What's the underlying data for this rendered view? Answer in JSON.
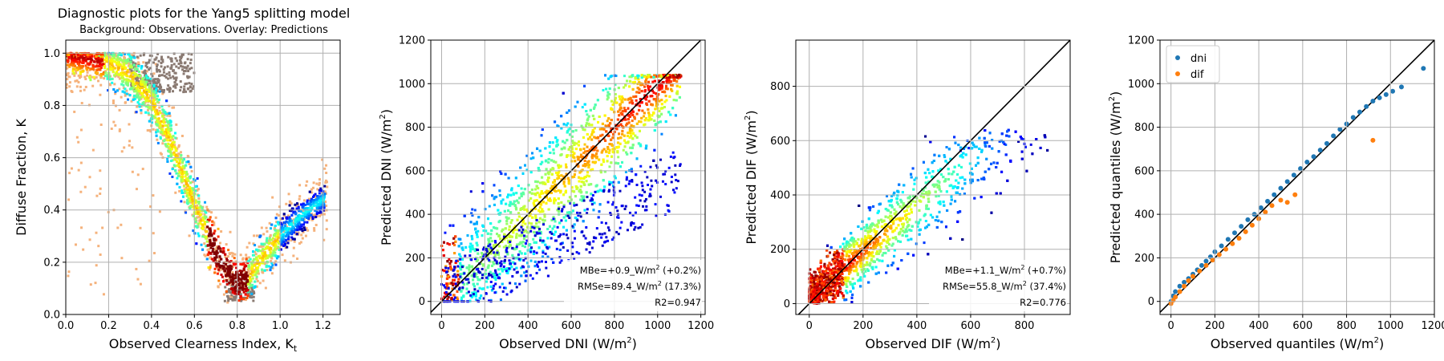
{
  "figure": {
    "title": "Diagnostic plots for the Yang5 splitting model",
    "subtitle": "Background: Observations. Overlay: Predictions"
  },
  "chart_data": [
    {
      "type": "scatter",
      "subtype": "density scatter",
      "xlabel": "Observed Clearness Index, K",
      "xlabel_subscript": "t",
      "ylabel": "Diffuse Fraction, K",
      "xlim": [
        0.0,
        1.28
      ],
      "ylim": [
        0.0,
        1.05
      ],
      "xticks": [
        "0.0",
        "0.2",
        "0.4",
        "0.6",
        "0.8",
        "1.0",
        "1.2"
      ],
      "yticks": [
        "0.0",
        "0.2",
        "0.4",
        "0.6",
        "0.8",
        "1.0"
      ],
      "grid": true,
      "background_color": "#f5b27c",
      "density_colormap": "jet",
      "predicted_color": "#8a7a72",
      "observed_curve_points": [
        [
          0.0,
          0.99
        ],
        [
          0.1,
          0.98
        ],
        [
          0.2,
          0.96
        ],
        [
          0.3,
          0.92
        ],
        [
          0.4,
          0.82
        ],
        [
          0.5,
          0.64
        ],
        [
          0.6,
          0.42
        ],
        [
          0.7,
          0.24
        ],
        [
          0.75,
          0.17
        ],
        [
          0.8,
          0.12
        ],
        [
          0.85,
          0.14
        ],
        [
          0.9,
          0.2
        ],
        [
          1.0,
          0.3
        ],
        [
          1.1,
          0.38
        ],
        [
          1.2,
          0.44
        ]
      ]
    },
    {
      "type": "scatter",
      "subtype": "density scatter",
      "xlabel": "Observed DNI (W/m",
      "ylabel": "Predicted DNI (W/m",
      "xlim": [
        -50,
        1220
      ],
      "ylim": [
        -60,
        1200
      ],
      "xticks": [
        0,
        200,
        400,
        600,
        800,
        1000,
        1200
      ],
      "yticks": [
        0,
        200,
        400,
        600,
        800,
        1000,
        1200
      ],
      "grid": true,
      "density_colormap": "jet",
      "reference_line": "y = x",
      "stats": {
        "mbe": "MBe=+0.9_W/m",
        "mbe_tail": " (+0.2%)",
        "rmse": "RMSe=89.4_W/m",
        "rmse_tail": " (17.3%)",
        "r2": "R2=0.947"
      }
    },
    {
      "type": "scatter",
      "subtype": "density scatter",
      "xlabel": "Observed DIF (W/m",
      "ylabel": "Predicted DIF (W/m",
      "xlim": [
        -50,
        970
      ],
      "ylim": [
        -40,
        970
      ],
      "xticks": [
        0,
        200,
        400,
        600,
        800
      ],
      "yticks": [
        0,
        200,
        400,
        600,
        800
      ],
      "grid": true,
      "density_colormap": "jet",
      "reference_line": "y = x",
      "stats": {
        "mbe": "MBe=+1.1_W/m",
        "mbe_tail": " (+0.7%)",
        "rmse": "RMSe=55.8_W/m",
        "rmse_tail": " (37.4%)",
        "r2": "R2=0.776"
      }
    },
    {
      "type": "scatter",
      "subtype": "quantile-quantile",
      "xlabel": "Observed quantiles (W/m",
      "ylabel": "Predicted quantiles (W/m",
      "xlim": [
        -50,
        1200
      ],
      "ylim": [
        -60,
        1200
      ],
      "xticks": [
        0,
        200,
        400,
        600,
        800,
        1000,
        1200
      ],
      "yticks": [
        0,
        200,
        400,
        600,
        800,
        1000,
        1200
      ],
      "grid": true,
      "legend": "top-left",
      "reference_line": "y = x",
      "series": [
        {
          "name": "dni",
          "color": "#1f77b4",
          "points": [
            [
              0,
              0
            ],
            [
              10,
              25
            ],
            [
              20,
              45
            ],
            [
              40,
              70
            ],
            [
              60,
              88
            ],
            [
              80,
              105
            ],
            [
              100,
              125
            ],
            [
              120,
              145
            ],
            [
              140,
              165
            ],
            [
              160,
              185
            ],
            [
              180,
              205
            ],
            [
              200,
              228
            ],
            [
              230,
              255
            ],
            [
              260,
              285
            ],
            [
              290,
              315
            ],
            [
              320,
              345
            ],
            [
              350,
              375
            ],
            [
              380,
              400
            ],
            [
              410,
              430
            ],
            [
              440,
              460
            ],
            [
              470,
              490
            ],
            [
              500,
              520
            ],
            [
              530,
              550
            ],
            [
              560,
              580
            ],
            [
              590,
              610
            ],
            [
              620,
              640
            ],
            [
              650,
              665
            ],
            [
              680,
              695
            ],
            [
              710,
              725
            ],
            [
              740,
              760
            ],
            [
              770,
              790
            ],
            [
              800,
              815
            ],
            [
              830,
              845
            ],
            [
              860,
              870
            ],
            [
              890,
              895
            ],
            [
              920,
              920
            ],
            [
              950,
              935
            ],
            [
              980,
              950
            ],
            [
              1010,
              965
            ],
            [
              1050,
              985
            ],
            [
              1150,
              1070
            ]
          ]
        },
        {
          "name": "dif",
          "color": "#ff7f0e",
          "points": [
            [
              0,
              -10
            ],
            [
              10,
              5
            ],
            [
              20,
              20
            ],
            [
              40,
              45
            ],
            [
              60,
              70
            ],
            [
              80,
              95
            ],
            [
              100,
              115
            ],
            [
              130,
              140
            ],
            [
              160,
              165
            ],
            [
              190,
              190
            ],
            [
              220,
              215
            ],
            [
              250,
              240
            ],
            [
              280,
              265
            ],
            [
              310,
              290
            ],
            [
              340,
              320
            ],
            [
              370,
              350
            ],
            [
              400,
              380
            ],
            [
              430,
              410
            ],
            [
              460,
              440
            ],
            [
              500,
              465
            ],
            [
              530,
              455
            ],
            [
              565,
              490
            ],
            [
              920,
              740
            ]
          ]
        }
      ]
    }
  ]
}
